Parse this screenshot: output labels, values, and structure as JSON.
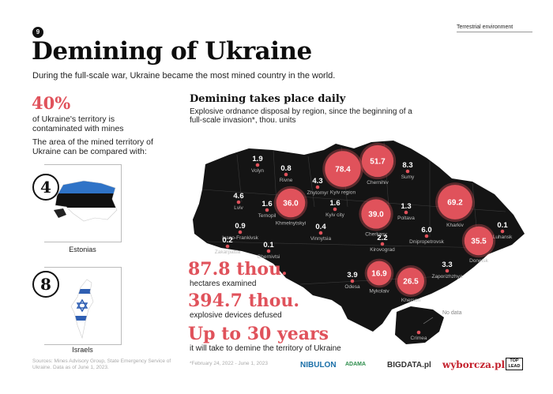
{
  "page_number": "9",
  "section_tag": "Terrestrial environment",
  "title": "Demining of Ukraine",
  "subtitle": "During the full-scale war, Ukraine became the most mined country in the world.",
  "left": {
    "percent": "40%",
    "percent_desc": "of Ukraine's territory is contaminated with mines",
    "compare_text": "The area of the mined territory of Ukraine can be compared with:",
    "comparisons": [
      {
        "count": "4",
        "label": "Estonias"
      },
      {
        "count": "8",
        "label": "Israels"
      }
    ]
  },
  "map_section": {
    "title": "Demining takes place daily",
    "description": "Explosive ordnance disposal by region, since the beginning of a full-scale invasion*, thou. units",
    "no_data_label": "No data",
    "regions": [
      {
        "value": "1.9",
        "name": "Volyn"
      },
      {
        "value": "0.8",
        "name": "Rivne"
      },
      {
        "value": "78.4",
        "name": "Kyiv region"
      },
      {
        "value": "51.7",
        "name": "Chernihiv"
      },
      {
        "value": "8.3",
        "name": "Sumy"
      },
      {
        "value": "4.3",
        "name": "Zhytomyr"
      },
      {
        "value": "4.6",
        "name": "Lviv"
      },
      {
        "value": "1.6",
        "name": "Ternopil"
      },
      {
        "value": "36.0",
        "name": "Khmelnytskyi"
      },
      {
        "value": "1.6",
        "name": "Kyiv city"
      },
      {
        "value": "1.3",
        "name": "Poltava"
      },
      {
        "value": "69.2",
        "name": "Kharkiv"
      },
      {
        "value": "0.9",
        "name": "Ivano-Frankivsk"
      },
      {
        "value": "0.4",
        "name": "Vinnytsia"
      },
      {
        "value": "39.0",
        "name": "Cherkasy"
      },
      {
        "value": "0.1",
        "name": "Luhansk"
      },
      {
        "value": "0.2",
        "name": "Zakarpattia"
      },
      {
        "value": "0.1",
        "name": "Chernivtsi"
      },
      {
        "value": "2.2",
        "name": "Kirovograd"
      },
      {
        "value": "6.0",
        "name": "Dnipropetrovsk"
      },
      {
        "value": "35.5",
        "name": "Donetsk"
      },
      {
        "value": "3.3",
        "name": "Zaporizhzhya"
      },
      {
        "value": "3.9",
        "name": "Odesa"
      },
      {
        "value": "16.9",
        "name": "Mykolaiv"
      },
      {
        "value": "26.5",
        "name": "Kherson"
      },
      {
        "value": "",
        "name": "Crimea"
      }
    ]
  },
  "stats": [
    {
      "value": "87.8 thou.",
      "label": "hectares examined"
    },
    {
      "value": "394.7 thou.",
      "label": "explosive devices defused"
    },
    {
      "value": "Up to 30 years",
      "label": "it will take to demine the territory of Ukraine"
    }
  ],
  "footer": {
    "sources": "Sources: Mines Advisory Group, State Emergency Service of Ukraine. Data as of June 1, 2023.",
    "date_note": "*February 24, 2022 - June 1, 2023",
    "logos": [
      "NIBULON",
      "ADAMA",
      "BIGDATA.pl",
      "wyborcza.pl",
      "TOP LEAD"
    ]
  },
  "colors": {
    "accent": "#e0525b",
    "map": "#141414",
    "text": "#111111"
  }
}
